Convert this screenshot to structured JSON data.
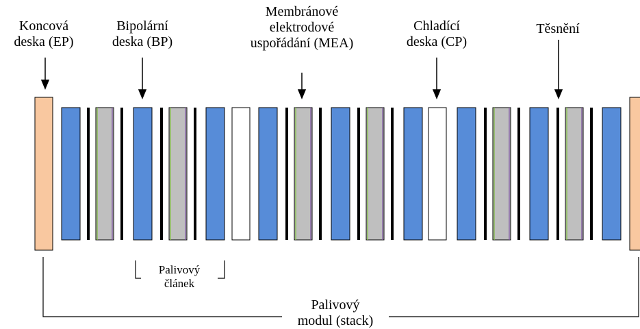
{
  "labels": {
    "end_plate": [
      "Koncová",
      "deska (EP)"
    ],
    "bipolar_plate": [
      "Bipolární",
      "deska (BP)"
    ],
    "mea": [
      "Membránové",
      "elektrodové",
      "uspořádání (MEA)"
    ],
    "cooling_plate": [
      "Chladící",
      "deska (CP)"
    ],
    "gasket": [
      "Těsnění"
    ],
    "fuel_cell": [
      "Palivový",
      "článek"
    ],
    "stack": [
      "Palivový",
      "modul (stack)"
    ]
  },
  "colors": {
    "end_plate": "#f9c8a0",
    "bipolar_plate": "#578cd8",
    "mea": "#bfbfbf",
    "cooling_plate": "#ffffff",
    "gasket": "#000000",
    "mea_edge_green": "#7fbf3f",
    "mea_edge_purple": "#7a4fa0"
  }
}
